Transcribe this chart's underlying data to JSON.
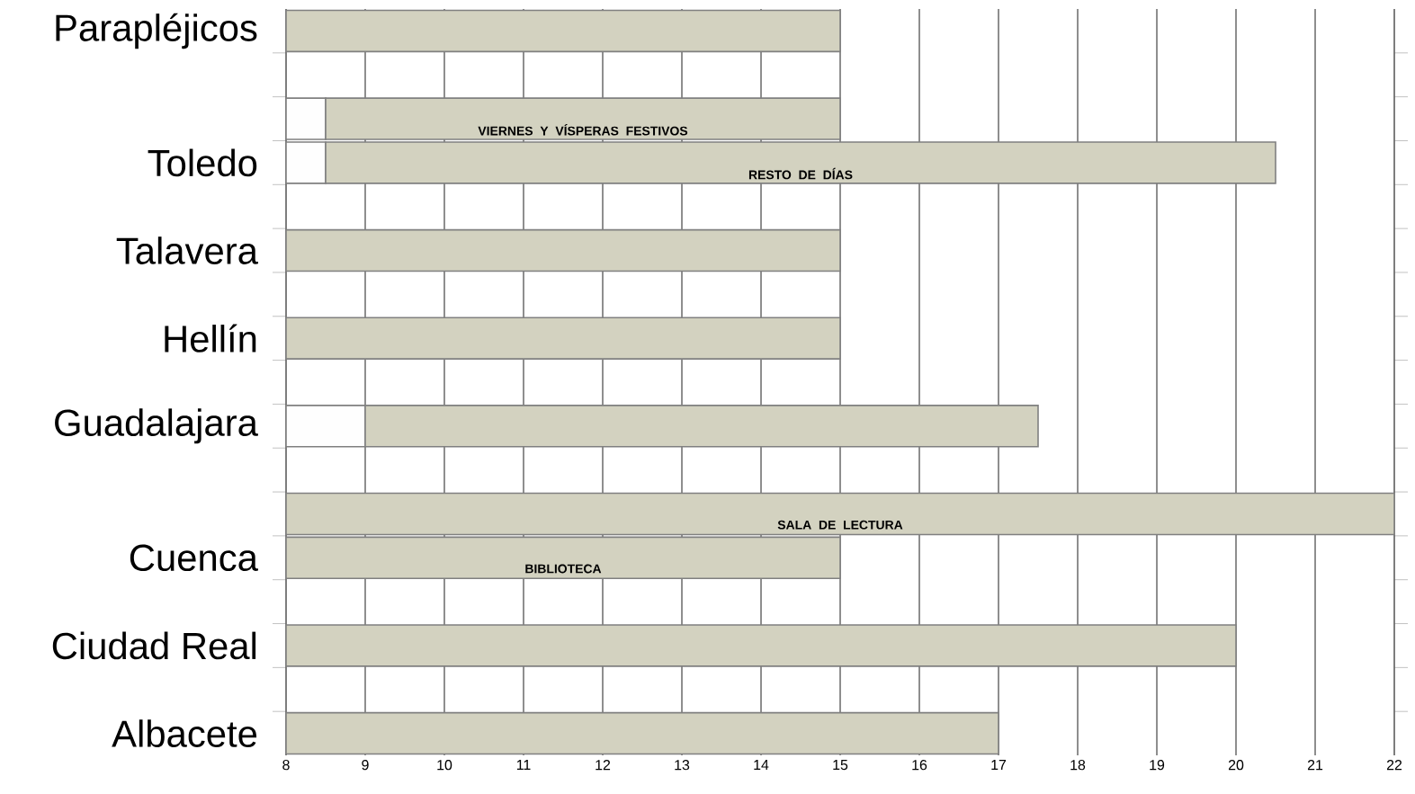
{
  "chart_data": {
    "type": "bar",
    "orientation": "horizontal",
    "categories": [
      "Parapléjicos",
      null,
      null,
      "Toledo",
      null,
      "Talavera",
      null,
      "Hellín",
      null,
      "Guadalajara",
      null,
      null,
      "Cuenca",
      null,
      "Ciudad Real",
      null,
      "Albacete"
    ],
    "series": [
      {
        "color": "#fefefe",
        "base": [
          null,
          null,
          8,
          8,
          null,
          null,
          null,
          null,
          null,
          8,
          null,
          null,
          null,
          null,
          null,
          null,
          null
        ],
        "values": [
          null,
          null,
          0.5,
          0.5,
          null,
          null,
          null,
          null,
          null,
          1,
          null,
          null,
          null,
          null,
          null,
          null,
          null
        ]
      },
      {
        "color": "#d3d2c0",
        "base": [
          8,
          null,
          8.5,
          8.5,
          null,
          8,
          null,
          8,
          null,
          9,
          null,
          8,
          8,
          null,
          8,
          null,
          8
        ],
        "values": [
          7,
          null,
          6.5,
          12,
          null,
          7,
          null,
          7,
          null,
          8.5,
          null,
          14,
          7,
          null,
          12,
          null,
          9
        ],
        "value_labels": [
          null,
          null,
          "VIERNES Y VÍSPERAS FESTIVOS",
          "RESTO DE DÍAS",
          null,
          null,
          null,
          null,
          null,
          null,
          null,
          "SALA DE LECTURA",
          "BIBLIOTECA",
          null,
          null,
          null,
          null
        ]
      }
    ],
    "xlim": [
      8,
      22
    ],
    "xticks": [
      8,
      9,
      10,
      11,
      12,
      13,
      14,
      15,
      16,
      17,
      18,
      19,
      20,
      21,
      22
    ],
    "grid": "x"
  }
}
